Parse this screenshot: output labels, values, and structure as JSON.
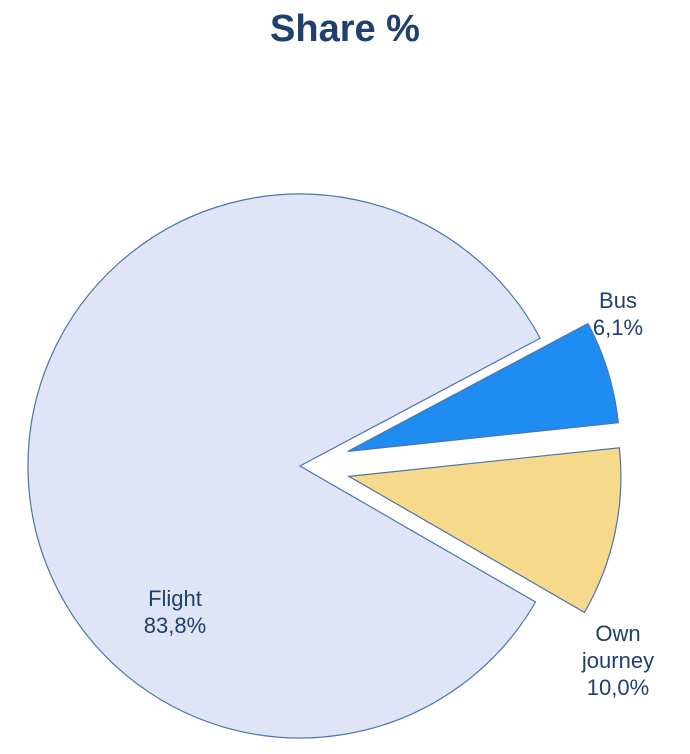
{
  "chart_data": {
    "type": "pie",
    "title": "Share %",
    "categories": [
      "Flight",
      "Bus",
      "Own journey"
    ],
    "values": [
      83.8,
      6.1,
      10.0
    ],
    "value_labels": [
      "83,8%",
      "6,1%",
      "10,0%"
    ],
    "colors": [
      "#dfe4f7",
      "#1e8cf0",
      "#f6d98a"
    ]
  }
}
